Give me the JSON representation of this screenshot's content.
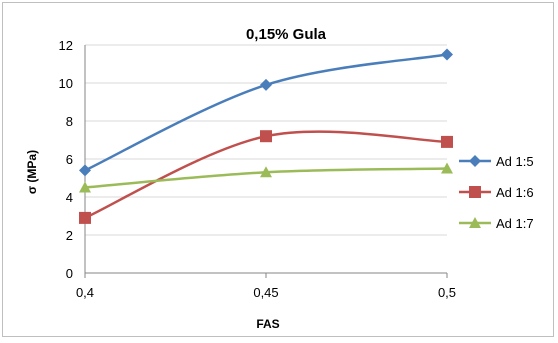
{
  "chart_data": {
    "type": "line",
    "title": "0,15% Gula",
    "xlabel": "FAS",
    "ylabel": "σ (MPa)",
    "x": [
      0.4,
      0.45,
      0.5
    ],
    "x_tick_labels": [
      "0,4",
      "0,45",
      "0,5"
    ],
    "ylim": [
      0,
      12
    ],
    "y_ticks": [
      0,
      2,
      4,
      6,
      8,
      10,
      12
    ],
    "grid": "horizontal",
    "legend_position": "right",
    "series": [
      {
        "name": "Ad 1:5",
        "values": [
          5.4,
          9.9,
          11.5
        ],
        "color": "#4a7ebb",
        "marker": "diamond"
      },
      {
        "name": "Ad 1:6",
        "values": [
          2.9,
          7.2,
          6.9
        ],
        "color": "#c0504d",
        "marker": "square"
      },
      {
        "name": "Ad 1:7",
        "values": [
          4.5,
          5.3,
          5.5
        ],
        "color": "#9bbb59",
        "marker": "triangle"
      }
    ]
  }
}
